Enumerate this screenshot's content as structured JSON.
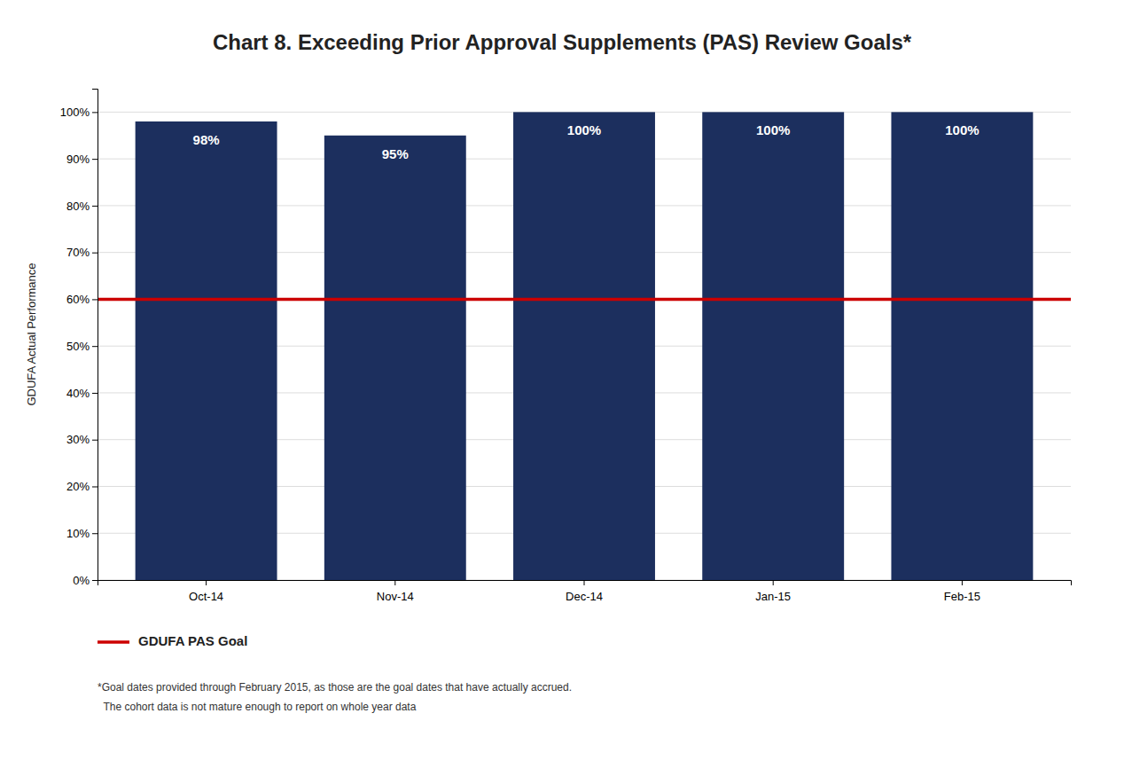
{
  "chart_data": {
    "type": "bar",
    "title": "Chart 8. Exceeding Prior Approval Supplements (PAS) Review Goals*",
    "categories": [
      "Oct-14",
      "Nov-14",
      "Dec-14",
      "Jan-15",
      "Feb-15"
    ],
    "values": [
      98,
      95,
      100,
      100,
      100
    ],
    "value_labels": [
      "98%",
      "95%",
      "100%",
      "100%",
      "100%"
    ],
    "data_labels": true,
    "color": "#1C2F5E",
    "ylabel": "GDUFA Actual Performance",
    "ylim": [
      0,
      105
    ],
    "yticks": [
      {
        "value": 0,
        "label": "0%"
      },
      {
        "value": 10,
        "label": "10%"
      },
      {
        "value": 20,
        "label": "20%"
      },
      {
        "value": 30,
        "label": "30%"
      },
      {
        "value": 40,
        "label": "40%"
      },
      {
        "value": 50,
        "label": "50%"
      },
      {
        "value": 60,
        "label": "60%"
      },
      {
        "value": 70,
        "label": "70%"
      },
      {
        "value": 80,
        "label": "80%"
      },
      {
        "value": 90,
        "label": "90%"
      },
      {
        "value": 100,
        "label": "100%"
      }
    ],
    "grid": true,
    "goal": {
      "name": "GDUFA PAS Goal",
      "value": 60,
      "color": "#CC0000"
    },
    "legend": "bottom",
    "annotations": [
      "*Goal dates provided through February 2015, as those are the goal dates that have actually accrued.",
      "  The cohort data is not mature enough to report on whole year data"
    ]
  }
}
